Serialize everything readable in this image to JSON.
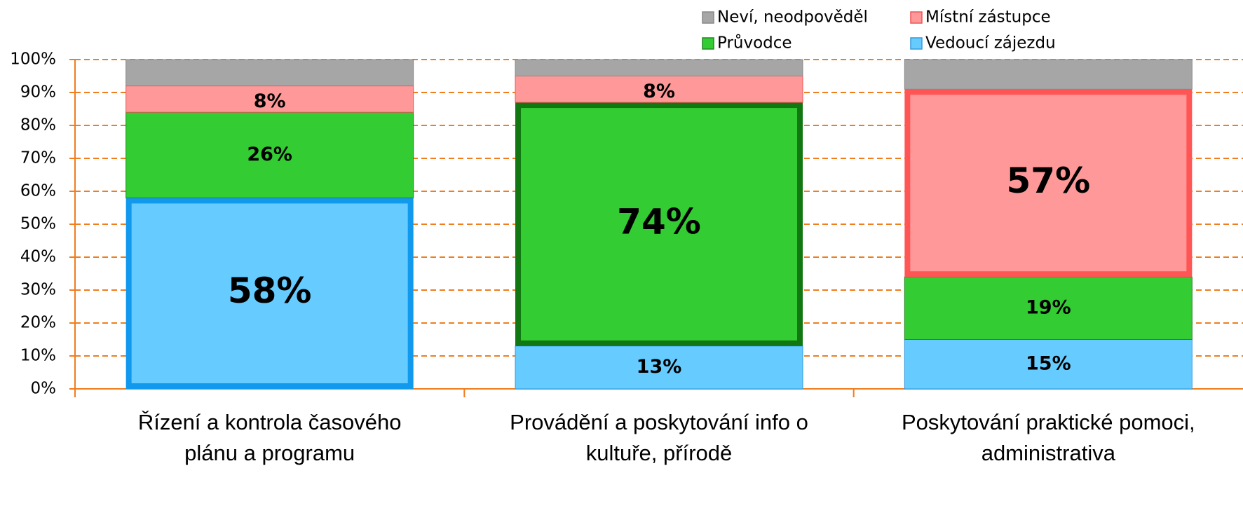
{
  "chart_data": {
    "type": "stacked_bar",
    "categories": [
      [
        "Řízení a kontrola časového",
        "plánu a programu"
      ],
      [
        "Provádění a poskytování  info o",
        "kultuře, přírodě"
      ],
      [
        "Poskytování praktické pomoci,",
        "administrativa"
      ]
    ],
    "series": [
      {
        "name": "Vedoucí zájezdu",
        "color": "#66ccff",
        "edge": "#3399dd",
        "values": [
          58,
          13,
          15
        ],
        "value_labels": [
          "58%",
          "13%",
          "15%"
        ]
      },
      {
        "name": "Průvodce",
        "color": "#33cc33",
        "edge": "#228822",
        "values": [
          26,
          74,
          19
        ],
        "value_labels": [
          "26%",
          "74%",
          "19%"
        ]
      },
      {
        "name": "Místní zástupce",
        "color": "#ff9999",
        "edge": "#ee5555",
        "values": [
          8,
          8,
          57
        ],
        "value_labels": [
          "8%",
          "8%",
          "57%"
        ]
      },
      {
        "name": "Neví, neodpověděl",
        "color": "#a6a6a6",
        "edge": "#888888",
        "values": [
          8,
          5,
          9
        ],
        "show_labels": false
      }
    ],
    "highlight": [
      0,
      1,
      2
    ],
    "highlight_colors": [
      "#1199ee",
      "#117711",
      "#ff5555"
    ],
    "ylim": [
      0,
      100
    ],
    "yticks": [
      {
        "value": 0,
        "label": "0%"
      },
      {
        "value": 10,
        "label": "10%"
      },
      {
        "value": 20,
        "label": "20%"
      },
      {
        "value": 30,
        "label": "30%"
      },
      {
        "value": 40,
        "label": "40%"
      },
      {
        "value": 50,
        "label": "50%"
      },
      {
        "value": 60,
        "label": "60%"
      },
      {
        "value": 70,
        "label": "70%"
      },
      {
        "value": 80,
        "label": "80%"
      },
      {
        "value": 90,
        "label": "90%"
      },
      {
        "value": 100,
        "label": "100%"
      }
    ],
    "grid": true,
    "grid_color": "#f07d1e",
    "legend_order": [
      3,
      2,
      1,
      0
    ]
  }
}
